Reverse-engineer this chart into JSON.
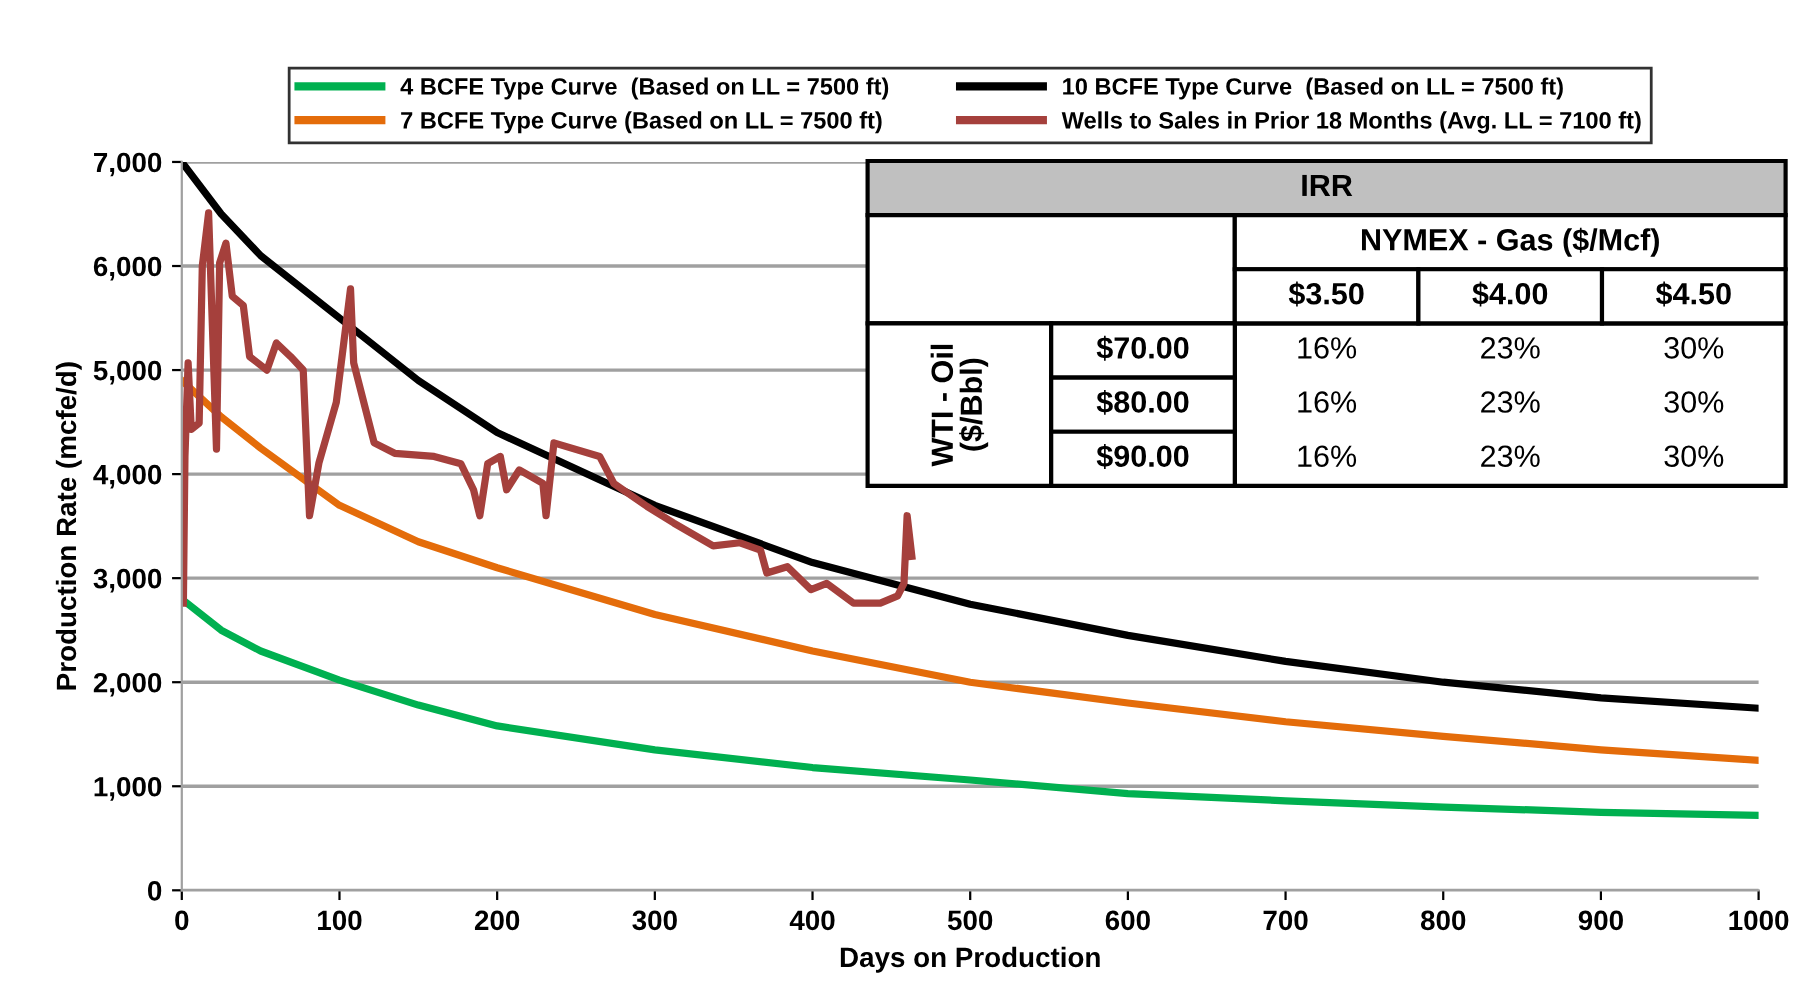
{
  "chart_data": [
    {
      "type": "line",
      "xlabel": "Days on Production",
      "ylabel": "Production Rate (mcfe/d)",
      "xlim": [
        0,
        1000
      ],
      "ylim": [
        0,
        7000
      ],
      "xticks": [
        0,
        100,
        200,
        300,
        400,
        500,
        600,
        700,
        800,
        900,
        1000
      ],
      "yticks": [
        {
          "value": 0,
          "label": "0"
        },
        {
          "value": 1000,
          "label": "1,000"
        },
        {
          "value": 2000,
          "label": "2,000"
        },
        {
          "value": 3000,
          "label": "3,000"
        },
        {
          "value": 4000,
          "label": "4,000"
        },
        {
          "value": 5000,
          "label": "5,000"
        },
        {
          "value": 6000,
          "label": "6,000"
        },
        {
          "value": 7000,
          "label": "7,000"
        }
      ],
      "grid": "y",
      "legend": "top",
      "marker": "none",
      "line_style": "solid",
      "series": [
        {
          "name": "4 BCFE Type Curve  (Based on LL = 7500 ft)",
          "color": "#00b050",
          "x": [
            0,
            25,
            50,
            100,
            150,
            200,
            300,
            400,
            500,
            600,
            700,
            800,
            900,
            1000
          ],
          "values": [
            2800,
            2500,
            2300,
            2020,
            1780,
            1580,
            1350,
            1180,
            1060,
            930,
            860,
            800,
            750,
            720
          ]
        },
        {
          "name": "7 BCFE Type Curve (Based on LL = 7500 ft)",
          "color": "#e46c0a",
          "x": [
            0,
            25,
            50,
            100,
            150,
            200,
            300,
            400,
            500,
            600,
            700,
            800,
            900,
            1000
          ],
          "values": [
            4900,
            4550,
            4250,
            3700,
            3350,
            3100,
            2650,
            2300,
            2000,
            1800,
            1620,
            1480,
            1350,
            1250
          ]
        },
        {
          "name": "10 BCFE Type Curve  (Based on LL = 7500 ft)",
          "color": "#000000",
          "x": [
            0,
            25,
            50,
            100,
            150,
            200,
            300,
            400,
            500,
            600,
            700,
            800,
            900,
            1000
          ],
          "values": [
            7000,
            6500,
            6100,
            5500,
            4900,
            4400,
            3700,
            3150,
            2750,
            2450,
            2200,
            2000,
            1850,
            1750
          ]
        },
        {
          "name": "Wells to Sales in Prior 18 Months (Avg. LL = 7100 ft)",
          "color": "#a5403c",
          "x": [
            1,
            2,
            4,
            6,
            11,
            13,
            17,
            22,
            24,
            28,
            32,
            39,
            43,
            54,
            60,
            69,
            77,
            81,
            87,
            98,
            107,
            109,
            122,
            135,
            160,
            177,
            185,
            189,
            194,
            202,
            206,
            214,
            229,
            231,
            236,
            265,
            274,
            295,
            312,
            337,
            354,
            367,
            371,
            384,
            399,
            409,
            426,
            443,
            454,
            458,
            460,
            463
          ],
          "values": [
            2760,
            4170,
            5070,
            4430,
            4490,
            6000,
            6510,
            4240,
            6030,
            6220,
            5710,
            5620,
            5130,
            5000,
            5260,
            5130,
            5000,
            3600,
            4110,
            4690,
            5780,
            5070,
            4300,
            4200,
            4170,
            4100,
            3850,
            3600,
            4100,
            4170,
            3850,
            4040,
            3910,
            3600,
            4300,
            4170,
            3910,
            3690,
            3530,
            3310,
            3340,
            3270,
            3050,
            3110,
            2890,
            2950,
            2760,
            2760,
            2830,
            2950,
            3600,
            3210
          ]
        }
      ]
    },
    {
      "type": "other",
      "title": "IRR",
      "xlabel": "NYMEX - Gas ($/Mcf)",
      "ylabel": "WTI - Oil\n($/Bbl)",
      "categories": [
        "$3.50",
        "$4.00",
        "$4.50"
      ],
      "y_categories": [
        "$70.00",
        "$80.00",
        "$90.00"
      ],
      "cell_labels": [
        [
          "16%",
          "23%",
          "30%"
        ],
        [
          "16%",
          "23%",
          "30%"
        ],
        [
          "16%",
          "23%",
          "30%"
        ]
      ]
    }
  ]
}
